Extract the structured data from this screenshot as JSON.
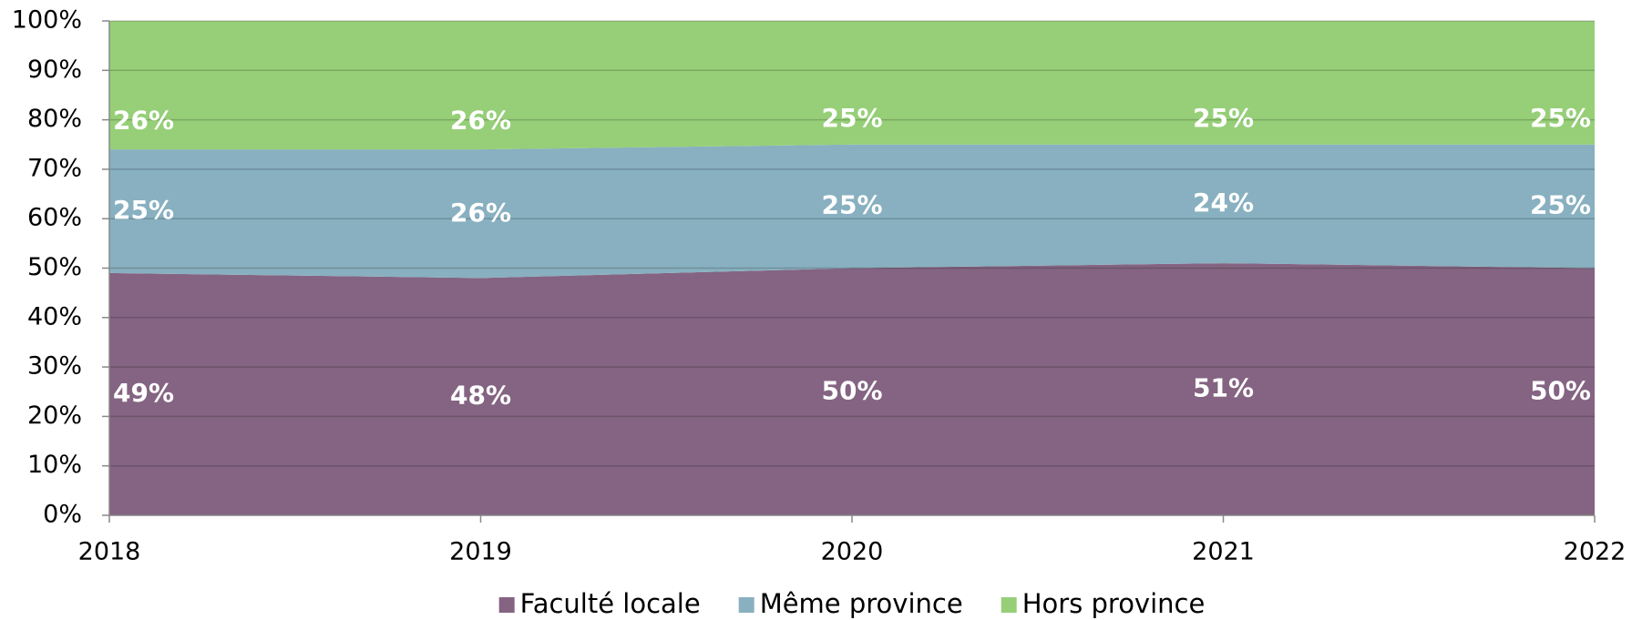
{
  "chart_data": {
    "type": "stacked_area_100",
    "x": [
      2018,
      2019,
      2020,
      2021,
      2022
    ],
    "xlim": [
      2018,
      2022
    ],
    "xticks": [
      2018,
      2019,
      2020,
      2021,
      2022
    ],
    "ylim": [
      0,
      100
    ],
    "yticks": [
      {
        "value": 0,
        "label": "0%"
      },
      {
        "value": 10,
        "label": "10%"
      },
      {
        "value": 20,
        "label": "20%"
      },
      {
        "value": 30,
        "label": "30%"
      },
      {
        "value": 40,
        "label": "40%"
      },
      {
        "value": 50,
        "label": "50%"
      },
      {
        "value": 60,
        "label": "60%"
      },
      {
        "value": 70,
        "label": "70%"
      },
      {
        "value": 80,
        "label": "80%"
      },
      {
        "value": 90,
        "label": "90%"
      },
      {
        "value": 100,
        "label": "100%"
      }
    ],
    "grid": true,
    "legend": "bottom",
    "series": [
      {
        "name": "Faculté locale",
        "color": "#846482",
        "values": [
          49,
          48,
          50,
          51,
          50
        ],
        "value_labels": [
          "49%",
          "48%",
          "50%",
          "51%",
          "50%"
        ]
      },
      {
        "name": "Même province",
        "color": "#88b0c0",
        "values": [
          25,
          26,
          25,
          24,
          25
        ],
        "value_labels": [
          "25%",
          "26%",
          "25%",
          "24%",
          "25%"
        ]
      },
      {
        "name": "Hors province",
        "color": "#96cf78",
        "values": [
          26,
          26,
          25,
          25,
          25
        ],
        "value_labels": [
          "26%",
          "26%",
          "25%",
          "25%",
          "25%"
        ]
      }
    ]
  }
}
